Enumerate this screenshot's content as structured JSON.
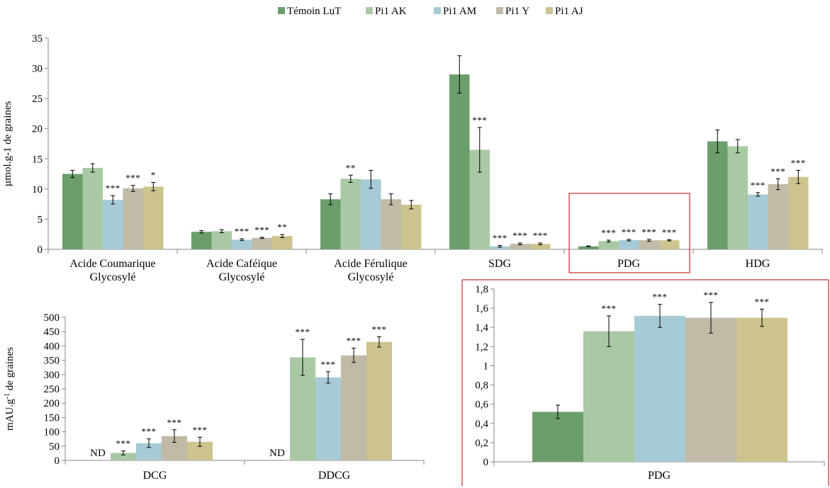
{
  "colors": {
    "Témoin LuT": "#6b9e6b",
    "Pi1 AK": "#a9c9a4",
    "Pi1 AM": "#a7cbd6",
    "Pi1 Y": "#c0baa7",
    "Pi1 AJ": "#cdc38f",
    "highlight_border": "#c00000"
  },
  "legend": [
    "Témoin LuT",
    "Pi1 AK",
    "Pi1 AM",
    "Pi1 Y",
    "Pi1 AJ"
  ],
  "chart_data": [
    {
      "type": "bar",
      "ylabel": "µmol.g-1 de graines",
      "ylim": [
        0,
        35
      ],
      "yticks": [
        "0",
        "5",
        "10",
        "15",
        "20",
        "25",
        "30",
        "35"
      ],
      "grid": false,
      "legend_position": "top",
      "categories": [
        [
          "Acide Coumarique",
          "Glycosylé"
        ],
        [
          "Acide Caféique",
          "Glycosylé"
        ],
        [
          "Acide Férulique",
          "Glycosylé"
        ],
        [
          "SDG"
        ],
        [
          "PDG"
        ],
        [
          "HDG"
        ]
      ],
      "series": [
        {
          "name": "Témoin LuT",
          "values": [
            12.5,
            2.9,
            8.3,
            29.0,
            0.5,
            17.9
          ],
          "errors": [
            0.6,
            0.2,
            0.9,
            3.1,
            0.07,
            1.9
          ],
          "sig": [
            "",
            "",
            "",
            "",
            "",
            ""
          ]
        },
        {
          "name": "Pi1 AK",
          "values": [
            13.5,
            3.0,
            11.7,
            16.5,
            1.36,
            17.1
          ],
          "errors": [
            0.7,
            0.25,
            0.6,
            3.7,
            0.16,
            1.1
          ],
          "sig": [
            "",
            "",
            "**",
            "***",
            "***",
            ""
          ]
        },
        {
          "name": "Pi1 AM",
          "values": [
            8.2,
            1.6,
            11.6,
            0.5,
            1.52,
            9.1
          ],
          "errors": [
            0.7,
            0.15,
            1.5,
            0.15,
            0.12,
            0.3
          ],
          "sig": [
            "***",
            "***",
            "",
            "***",
            "***",
            "***"
          ]
        },
        {
          "name": "Pi1 Y",
          "values": [
            10.1,
            1.9,
            8.3,
            0.9,
            1.5,
            10.8
          ],
          "errors": [
            0.5,
            0.1,
            0.9,
            0.15,
            0.16,
            0.9
          ],
          "sig": [
            "***",
            "***",
            "",
            "***",
            "***",
            "***"
          ]
        },
        {
          "name": "Pi1 AJ",
          "values": [
            10.4,
            2.2,
            7.4,
            0.9,
            1.5,
            12.0
          ],
          "errors": [
            0.7,
            0.25,
            0.7,
            0.15,
            0.09,
            1.1
          ],
          "sig": [
            "*",
            "**",
            "",
            "***",
            "***",
            "***"
          ]
        }
      ],
      "highlighted_category": "PDG"
    },
    {
      "type": "bar",
      "ylabel": "mAU.g-1 de graines",
      "ylabel_parts": {
        "base": "mAU.g",
        "sup": "-1",
        "rest": " de graines"
      },
      "ylim": [
        0,
        500
      ],
      "yticks": [
        "0",
        "50",
        "100",
        "150",
        "200",
        "250",
        "300",
        "350",
        "400",
        "450",
        "500"
      ],
      "grid": false,
      "categories": [
        [
          "DCG"
        ],
        [
          "DDCG"
        ]
      ],
      "not_detected_label": "ND",
      "series": [
        {
          "name": "Témoin LuT",
          "values": [
            null,
            null
          ],
          "errors": [
            null,
            null
          ],
          "sig": [
            "",
            ""
          ]
        },
        {
          "name": "Pi1 AK",
          "values": [
            26,
            360
          ],
          "errors": [
            7,
            63
          ],
          "sig": [
            "***",
            "***"
          ]
        },
        {
          "name": "Pi1 AM",
          "values": [
            60,
            290
          ],
          "errors": [
            15,
            20
          ],
          "sig": [
            "***",
            "***"
          ]
        },
        {
          "name": "Pi1 Y",
          "values": [
            85,
            367
          ],
          "errors": [
            22,
            25
          ],
          "sig": [
            "***",
            "***"
          ]
        },
        {
          "name": "Pi1 AJ",
          "values": [
            65,
            414
          ],
          "errors": [
            16,
            18
          ],
          "sig": [
            "***",
            "***"
          ]
        }
      ]
    },
    {
      "type": "bar",
      "ylim": [
        0,
        1.8
      ],
      "yticks": [
        "0",
        "0,2",
        "0,4",
        "0,6",
        "0,8",
        "1",
        "1,2",
        "1,4",
        "1,6",
        "1,8"
      ],
      "grid": false,
      "categories": [
        [
          "PDG"
        ]
      ],
      "series": [
        {
          "name": "Témoin LuT",
          "values": [
            0.52
          ],
          "errors": [
            0.07
          ],
          "sig": [
            ""
          ]
        },
        {
          "name": "Pi1 AK",
          "values": [
            1.36
          ],
          "errors": [
            0.16
          ],
          "sig": [
            "***"
          ]
        },
        {
          "name": "Pi1 AM",
          "values": [
            1.52
          ],
          "errors": [
            0.12
          ],
          "sig": [
            "***"
          ]
        },
        {
          "name": "Pi1 Y",
          "values": [
            1.5
          ],
          "errors": [
            0.16
          ],
          "sig": [
            "***"
          ]
        },
        {
          "name": "Pi1 AJ",
          "values": [
            1.5
          ],
          "errors": [
            0.09
          ],
          "sig": [
            "***"
          ]
        }
      ]
    }
  ]
}
